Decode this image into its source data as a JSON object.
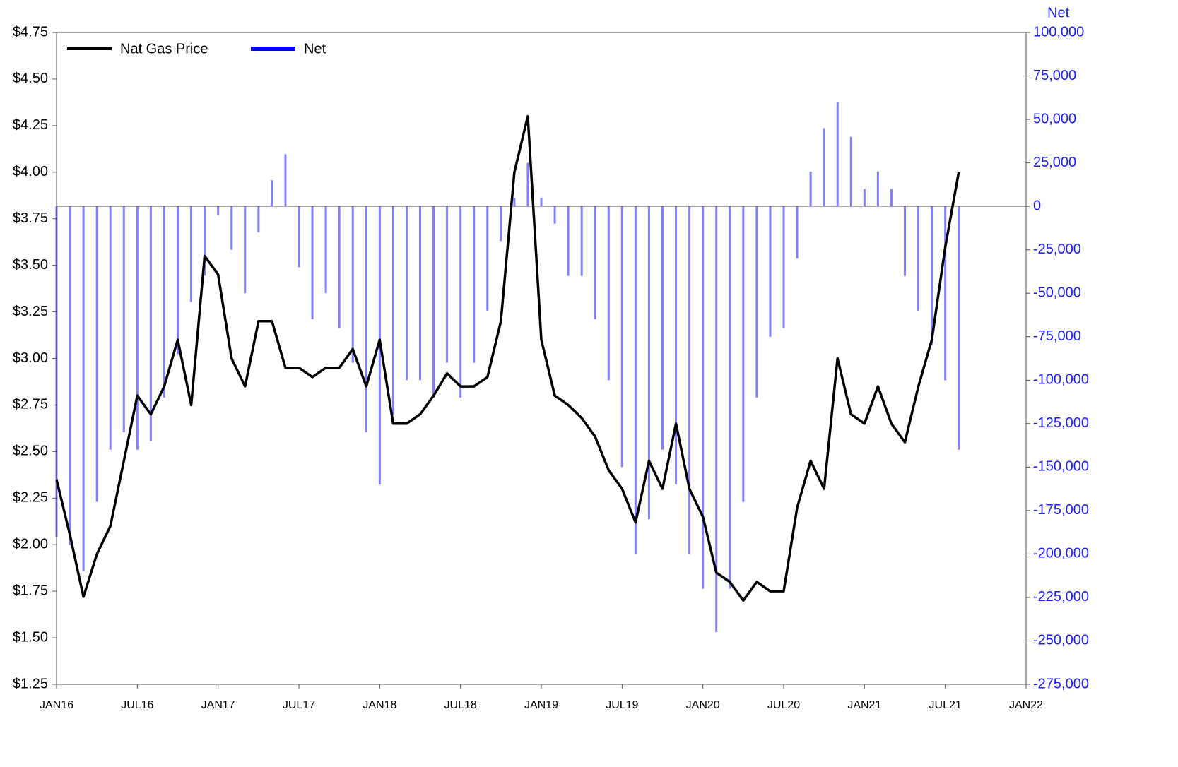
{
  "chart_data": {
    "type": "bar+line",
    "x": [
      "2016-01",
      "2016-02",
      "2016-03",
      "2016-04",
      "2016-05",
      "2016-06",
      "2016-07",
      "2016-08",
      "2016-09",
      "2016-10",
      "2016-11",
      "2016-12",
      "2017-01",
      "2017-02",
      "2017-03",
      "2017-04",
      "2017-05",
      "2017-06",
      "2017-07",
      "2017-08",
      "2017-09",
      "2017-10",
      "2017-11",
      "2017-12",
      "2018-01",
      "2018-02",
      "2018-03",
      "2018-04",
      "2018-05",
      "2018-06",
      "2018-07",
      "2018-08",
      "2018-09",
      "2018-10",
      "2018-11",
      "2018-12",
      "2019-01",
      "2019-02",
      "2019-03",
      "2019-04",
      "2019-05",
      "2019-06",
      "2019-07",
      "2019-08",
      "2019-09",
      "2019-10",
      "2019-11",
      "2019-12",
      "2020-01",
      "2020-02",
      "2020-03",
      "2020-04",
      "2020-05",
      "2020-06",
      "2020-07",
      "2020-08",
      "2020-09",
      "2020-10",
      "2020-11",
      "2020-12",
      "2021-01",
      "2021-02",
      "2021-03",
      "2021-04",
      "2021-05",
      "2021-06",
      "2021-07",
      "2021-08"
    ],
    "series": [
      {
        "name": "Nat Gas Price",
        "kind": "line",
        "color": "#000000",
        "values": [
          2.35,
          2.05,
          1.72,
          1.95,
          2.1,
          2.45,
          2.8,
          2.7,
          2.85,
          3.1,
          2.75,
          3.55,
          3.45,
          3.0,
          2.85,
          3.2,
          3.2,
          2.95,
          2.95,
          2.9,
          2.95,
          2.95,
          3.05,
          2.85,
          3.1,
          2.65,
          2.65,
          2.7,
          2.8,
          2.92,
          2.85,
          2.85,
          2.9,
          3.2,
          4.0,
          4.3,
          3.1,
          2.8,
          2.75,
          2.68,
          2.58,
          2.4,
          2.3,
          2.12,
          2.45,
          2.3,
          2.65,
          2.3,
          2.15,
          1.85,
          1.8,
          1.7,
          1.8,
          1.75,
          1.75,
          2.2,
          2.45,
          2.3,
          3.0,
          2.7,
          2.65,
          2.85,
          2.65,
          2.55,
          2.85,
          3.1,
          3.6,
          4.0
        ]
      },
      {
        "name": "Net",
        "kind": "bar",
        "axis": "y2",
        "color": "#0000ff",
        "values": [
          -190000,
          -195000,
          -210000,
          -170000,
          -140000,
          -130000,
          -140000,
          -135000,
          -110000,
          -85000,
          -55000,
          -40000,
          -5000,
          -25000,
          -50000,
          -15000,
          15000,
          30000,
          -35000,
          -65000,
          -50000,
          -70000,
          -90000,
          -130000,
          -160000,
          -120000,
          -100000,
          -100000,
          -110000,
          -90000,
          -110000,
          -90000,
          -60000,
          -20000,
          5000,
          25000,
          5000,
          -10000,
          -40000,
          -40000,
          -65000,
          -100000,
          -150000,
          -200000,
          -180000,
          -140000,
          -160000,
          -200000,
          -220000,
          -245000,
          -220000,
          -170000,
          -110000,
          -75000,
          -70000,
          -30000,
          20000,
          45000,
          60000,
          40000,
          10000,
          20000,
          10000,
          -40000,
          -60000,
          -80000,
          -100000,
          -140000
        ]
      }
    ],
    "xlim": [
      "2016-01",
      "2022-01"
    ],
    "xticks": [
      {
        "value": "2016-01",
        "label": "JAN16"
      },
      {
        "value": "2016-07",
        "label": "JUL16"
      },
      {
        "value": "2017-01",
        "label": "JAN17"
      },
      {
        "value": "2017-07",
        "label": "JUL17"
      },
      {
        "value": "2018-01",
        "label": "JAN18"
      },
      {
        "value": "2018-07",
        "label": "JUL18"
      },
      {
        "value": "2019-01",
        "label": "JAN19"
      },
      {
        "value": "2019-07",
        "label": "JUL19"
      },
      {
        "value": "2020-01",
        "label": "JAN20"
      },
      {
        "value": "2020-07",
        "label": "JUL20"
      },
      {
        "value": "2021-01",
        "label": "JAN21"
      },
      {
        "value": "2021-07",
        "label": "JUL21"
      },
      {
        "value": "2022-01",
        "label": "JAN22"
      }
    ],
    "ylim": [
      1.25,
      4.75
    ],
    "yticks": [
      {
        "value": 1.25,
        "label": "$1.25"
      },
      {
        "value": 1.5,
        "label": "$1.50"
      },
      {
        "value": 1.75,
        "label": "$1.75"
      },
      {
        "value": 2,
        "label": "$2.00"
      },
      {
        "value": 2.25,
        "label": "$2.25"
      },
      {
        "value": 2.5,
        "label": "$2.50"
      },
      {
        "value": 2.75,
        "label": "$2.75"
      },
      {
        "value": 3,
        "label": "$3.00"
      },
      {
        "value": 3.25,
        "label": "$3.25"
      },
      {
        "value": 3.5,
        "label": "$3.50"
      },
      {
        "value": 3.75,
        "label": "$3.75"
      },
      {
        "value": 4,
        "label": "$4.00"
      },
      {
        "value": 4.25,
        "label": "$4.25"
      },
      {
        "value": 4.5,
        "label": "$4.50"
      },
      {
        "value": 4.75,
        "label": "$4.75"
      }
    ],
    "y2_label": "Net",
    "y2lim": [
      -275000,
      100000
    ],
    "y2ticks": [
      {
        "value": -275000,
        "label": "-275,000"
      },
      {
        "value": -250000,
        "label": "-250,000"
      },
      {
        "value": -225000,
        "label": "-225,000"
      },
      {
        "value": -200000,
        "label": "-200,000"
      },
      {
        "value": -175000,
        "label": "-175,000"
      },
      {
        "value": -150000,
        "label": "-150,000"
      },
      {
        "value": -125000,
        "label": "-125,000"
      },
      {
        "value": -100000,
        "label": "-100,000"
      },
      {
        "value": -75000,
        "label": "-75,000"
      },
      {
        "value": -50000,
        "label": "-50,000"
      },
      {
        "value": -25000,
        "label": "-25,000"
      },
      0,
      {
        "value": 25000,
        "label": "25,000"
      },
      {
        "value": 50000,
        "label": "50,000"
      },
      {
        "value": 75000,
        "label": "75,000"
      },
      {
        "value": 100000,
        "label": "100,000"
      }
    ],
    "legend": "top-left"
  }
}
